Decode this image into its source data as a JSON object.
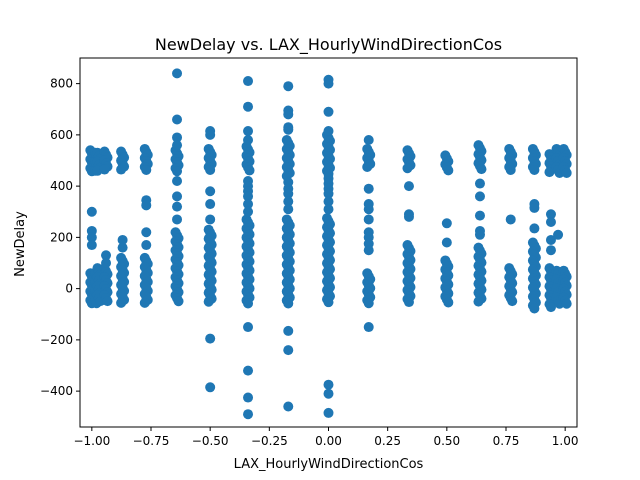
{
  "chart_data": {
    "type": "scatter",
    "title": "NewDelay vs. LAX_HourlyWindDirectionCos",
    "xlabel": "LAX_HourlyWindDirectionCos",
    "ylabel": "NewDelay",
    "xlim": [
      -1.05,
      1.05
    ],
    "ylim": [
      -540,
      900
    ],
    "xticks": [
      -1.0,
      -0.75,
      -0.5,
      -0.25,
      0.0,
      0.25,
      0.5,
      0.75,
      1.0
    ],
    "xtick_labels": [
      "−1.00",
      "−0.75",
      "−0.50",
      "−0.25",
      "0.00",
      "0.25",
      "0.50",
      "0.75",
      "1.00"
    ],
    "yticks": [
      -400,
      -200,
      0,
      200,
      400,
      600,
      800
    ],
    "ytick_labels": [
      "−400",
      "−200",
      "0",
      "200",
      "400",
      "600",
      "800"
    ],
    "grid": false,
    "marker_color": "#1f77b4",
    "columns": [
      {
        "x": -1.0,
        "dense": [
          [
            -60,
            60
          ],
          [
            450,
            540
          ]
        ],
        "points": [
          300,
          225,
          200,
          170
        ]
      },
      {
        "x": -0.98,
        "dense": [
          [
            -60,
            60
          ],
          [
            455,
            530
          ]
        ],
        "points": []
      },
      {
        "x": -0.97,
        "dense": [
          [
            -60,
            80
          ],
          [
            455,
            530
          ]
        ],
        "points": []
      },
      {
        "x": -0.94,
        "dense": [
          [
            -60,
            80
          ],
          [
            455,
            535
          ]
        ],
        "points": [
          130,
          100
        ]
      },
      {
        "x": -0.87,
        "dense": [
          [
            -60,
            120
          ],
          [
            455,
            535
          ]
        ],
        "points": [
          190,
          160
        ]
      },
      {
        "x": -0.77,
        "dense": [
          [
            -60,
            120
          ],
          [
            460,
            545
          ]
        ],
        "points": [
          345,
          325,
          220,
          170
        ]
      },
      {
        "x": -0.64,
        "dense": [
          [
            -60,
            220
          ],
          [
            450,
            540
          ]
        ],
        "points": [
          840,
          660,
          590,
          560,
          420,
          360,
          320,
          270
        ]
      },
      {
        "x": -0.5,
        "dense": [
          [
            -60,
            230
          ],
          [
            455,
            545
          ]
        ],
        "points": [
          615,
          600,
          380,
          330,
          270,
          -195,
          -385
        ]
      },
      {
        "x": -0.34,
        "dense": [
          [
            -60,
            270
          ],
          [
            455,
            555
          ]
        ],
        "points": [
          810,
          710,
          615,
          580,
          420,
          400,
          380,
          360,
          330,
          300,
          -150,
          -320,
          -425,
          -490
        ]
      },
      {
        "x": -0.17,
        "dense": [
          [
            -60,
            270
          ],
          [
            435,
            580
          ]
        ],
        "points": [
          790,
          695,
          680,
          630,
          620,
          415,
          390,
          370,
          340,
          310,
          -165,
          -240,
          -460
        ]
      },
      {
        "x": 0.0,
        "dense": [
          [
            -60,
            275
          ],
          [
            445,
            600
          ]
        ],
        "points": [
          815,
          800,
          690,
          615,
          430,
          410,
          390,
          370,
          340,
          310,
          -375,
          -410,
          -485
        ]
      },
      {
        "x": 0.17,
        "dense": [
          [
            -60,
            60
          ],
          [
            470,
            545
          ]
        ],
        "points": [
          580,
          390,
          330,
          310,
          270,
          220,
          200,
          175,
          150,
          -150
        ]
      },
      {
        "x": 0.34,
        "dense": [
          [
            -60,
            170
          ],
          [
            460,
            540
          ]
        ],
        "points": [
          400,
          290,
          280
        ]
      },
      {
        "x": 0.5,
        "dense": [
          [
            -60,
            110
          ],
          [
            460,
            520
          ]
        ],
        "points": [
          255,
          180
        ]
      },
      {
        "x": 0.64,
        "dense": [
          [
            -60,
            160
          ],
          [
            460,
            560
          ]
        ],
        "points": [
          410,
          360,
          285,
          225,
          210
        ]
      },
      {
        "x": 0.77,
        "dense": [
          [
            -60,
            80
          ],
          [
            460,
            545
          ]
        ],
        "points": [
          270
        ]
      },
      {
        "x": 0.87,
        "dense": [
          [
            -80,
            180
          ],
          [
            455,
            545
          ]
        ],
        "points": [
          330,
          315,
          235
        ]
      },
      {
        "x": 0.94,
        "dense": [
          [
            -80,
            80
          ],
          [
            450,
            525
          ]
        ],
        "points": [
          290,
          260,
          190,
          150
        ]
      },
      {
        "x": 0.97,
        "dense": [
          [
            -60,
            70
          ],
          [
            440,
            545
          ]
        ],
        "points": [
          210
        ]
      },
      {
        "x": 1.0,
        "dense": [
          [
            -60,
            70
          ],
          [
            450,
            545
          ]
        ],
        "points": []
      }
    ]
  }
}
